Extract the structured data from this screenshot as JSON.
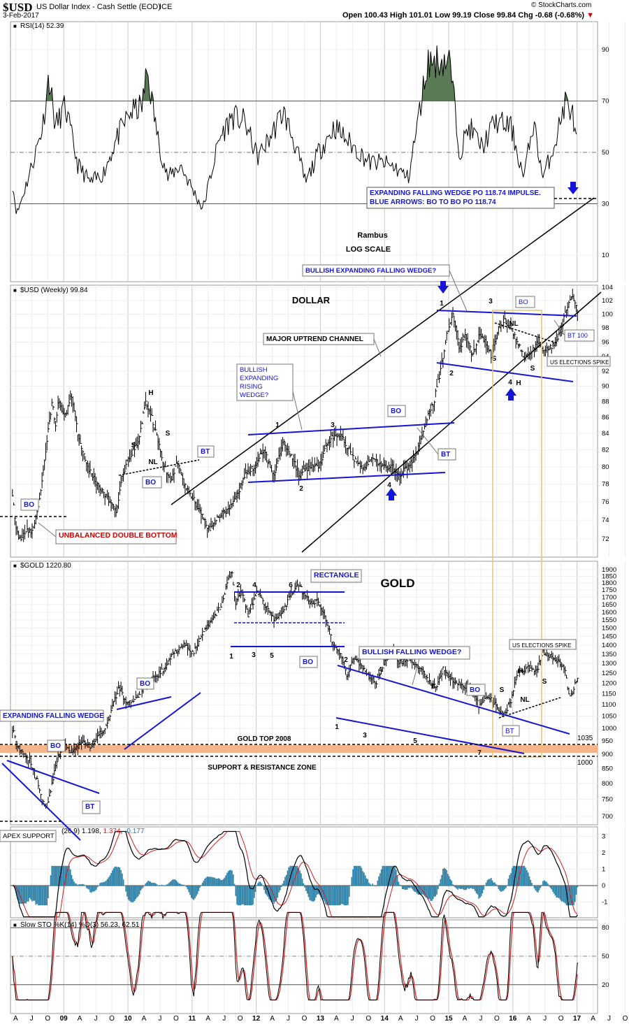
{
  "header": {
    "symbol": "$USD",
    "name": "US Dollar Index - Cash Settle (EOD)",
    "exchange": "ICE",
    "date": "3-Feb-2017",
    "quote": "Open 100.43  High 101.01  Low 99.19  Close 99.84  Chg -0.68 (-0.68%)",
    "quote_arrow": "▼",
    "credit": "© StockCharts.com"
  },
  "colors": {
    "rsi_fill": "#5a7a55",
    "blue": "#1515d8",
    "red": "#d40000",
    "zone": "#f6b48a",
    "box": "#e8c270",
    "hist": "#2a7fa6",
    "sig": "#d81e1e"
  },
  "months": [
    "A",
    "J",
    "O",
    "09",
    "A",
    "J",
    "O",
    "10",
    "A",
    "J",
    "O",
    "11",
    "A",
    "J",
    "O",
    "12",
    "A",
    "J",
    "O",
    "13",
    "A",
    "J",
    "O",
    "14",
    "A",
    "J",
    "O",
    "15",
    "A",
    "J",
    "O",
    "16",
    "A",
    "J",
    "O",
    "17",
    "A",
    "J",
    "O"
  ],
  "year_labels": [
    "09",
    "10",
    "11",
    "12",
    "13",
    "14",
    "15",
    "16",
    "17"
  ],
  "chart_data": [
    {
      "type": "line",
      "title": "RSI(14) 52.39",
      "y_ticks": [
        90,
        70,
        50,
        30,
        10
      ],
      "levels": [
        70,
        30
      ],
      "mid_level": 50,
      "x_range": [
        2008.25,
        2017.4
      ],
      "anchors": [
        [
          2008.28,
          38
        ],
        [
          2008.35,
          26
        ],
        [
          2008.55,
          42
        ],
        [
          2008.75,
          60
        ],
        [
          2008.85,
          80
        ],
        [
          2008.95,
          60
        ],
        [
          2009.1,
          68
        ],
        [
          2009.3,
          45
        ],
        [
          2009.5,
          38
        ],
        [
          2009.7,
          42
        ],
        [
          2009.9,
          55
        ],
        [
          2010.1,
          65
        ],
        [
          2010.3,
          68
        ],
        [
          2010.38,
          82
        ],
        [
          2010.55,
          55
        ],
        [
          2010.7,
          40
        ],
        [
          2010.9,
          45
        ],
        [
          2011.1,
          35
        ],
        [
          2011.25,
          28
        ],
        [
          2011.5,
          55
        ],
        [
          2011.7,
          64
        ],
        [
          2011.9,
          62
        ],
        [
          2012.1,
          48
        ],
        [
          2012.3,
          56
        ],
        [
          2012.5,
          66
        ],
        [
          2012.7,
          52
        ],
        [
          2012.85,
          38
        ],
        [
          2013.05,
          50
        ],
        [
          2013.3,
          60
        ],
        [
          2013.6,
          52
        ],
        [
          2013.85,
          46
        ],
        [
          2014.05,
          46
        ],
        [
          2014.25,
          44
        ],
        [
          2014.45,
          40
        ],
        [
          2014.6,
          62
        ],
        [
          2014.75,
          85
        ],
        [
          2014.95,
          86
        ],
        [
          2015.1,
          85
        ],
        [
          2015.25,
          50
        ],
        [
          2015.4,
          60
        ],
        [
          2015.6,
          52
        ],
        [
          2015.8,
          62
        ],
        [
          2016.05,
          60
        ],
        [
          2016.25,
          40
        ],
        [
          2016.4,
          62
        ],
        [
          2016.55,
          40
        ],
        [
          2016.75,
          55
        ],
        [
          2016.9,
          70
        ],
        [
          2017.0,
          66
        ],
        [
          2017.08,
          52
        ]
      ],
      "annotation_box": [
        "EXPANDING FALLING WEDGE PO 118.74 IMPULSE.",
        "BLUE ARROWS:  BO TO BO PO 118.74"
      ]
    },
    {
      "type": "line",
      "title": "$USD (Weekly) 99.84",
      "scale": "log",
      "y_ticks": [
        104,
        102,
        100,
        98,
        96,
        94,
        92,
        90,
        88,
        86,
        84,
        82,
        80,
        78,
        76,
        74,
        72
      ],
      "x_range": [
        2008.25,
        2017.4
      ],
      "anchors": [
        [
          2008.28,
          77
        ],
        [
          2008.33,
          73
        ],
        [
          2008.4,
          72
        ],
        [
          2008.5,
          73
        ],
        [
          2008.58,
          72.5
        ],
        [
          2008.7,
          76
        ],
        [
          2008.8,
          82
        ],
        [
          2008.9,
          88
        ],
        [
          2008.95,
          85
        ],
        [
          2009.0,
          88
        ],
        [
          2009.1,
          86
        ],
        [
          2009.2,
          89
        ],
        [
          2009.3,
          84
        ],
        [
          2009.45,
          80
        ],
        [
          2009.6,
          78
        ],
        [
          2009.8,
          76
        ],
        [
          2009.9,
          75
        ],
        [
          2010.0,
          79
        ],
        [
          2010.1,
          81
        ],
        [
          2010.25,
          83
        ],
        [
          2010.35,
          88
        ],
        [
          2010.45,
          86
        ],
        [
          2010.55,
          83
        ],
        [
          2010.65,
          80
        ],
        [
          2010.75,
          78
        ],
        [
          2010.85,
          81
        ],
        [
          2010.95,
          78
        ],
        [
          2011.05,
          77
        ],
        [
          2011.2,
          75
        ],
        [
          2011.35,
          73
        ],
        [
          2011.5,
          74.5
        ],
        [
          2011.7,
          75.5
        ],
        [
          2011.8,
          77
        ],
        [
          2011.9,
          79
        ],
        [
          2012.05,
          80
        ],
        [
          2012.2,
          82
        ],
        [
          2012.35,
          79
        ],
        [
          2012.5,
          83
        ],
        [
          2012.65,
          81
        ],
        [
          2012.75,
          79
        ],
        [
          2012.9,
          80
        ],
        [
          2013.05,
          80
        ],
        [
          2013.2,
          83
        ],
        [
          2013.35,
          84
        ],
        [
          2013.45,
          83
        ],
        [
          2013.6,
          81
        ],
        [
          2013.75,
          80
        ],
        [
          2013.9,
          81
        ],
        [
          2014.05,
          80
        ],
        [
          2014.2,
          80
        ],
        [
          2014.3,
          79
        ],
        [
          2014.45,
          80
        ],
        [
          2014.6,
          82
        ],
        [
          2014.75,
          86
        ],
        [
          2014.85,
          88
        ],
        [
          2014.95,
          92
        ],
        [
          2015.05,
          97
        ],
        [
          2015.15,
          100
        ],
        [
          2015.25,
          95
        ],
        [
          2015.35,
          97
        ],
        [
          2015.45,
          94
        ],
        [
          2015.55,
          97
        ],
        [
          2015.65,
          96
        ],
        [
          2015.75,
          94
        ],
        [
          2015.85,
          98
        ],
        [
          2015.95,
          99
        ],
        [
          2016.05,
          98
        ],
        [
          2016.15,
          96
        ],
        [
          2016.25,
          94
        ],
        [
          2016.35,
          94
        ],
        [
          2016.45,
          96
        ],
        [
          2016.55,
          95
        ],
        [
          2016.7,
          95.5
        ],
        [
          2016.8,
          97
        ],
        [
          2016.9,
          100
        ],
        [
          2017.0,
          103
        ],
        [
          2017.05,
          102
        ],
        [
          2017.1,
          99.84
        ]
      ],
      "annotations": {
        "title": "DOLLAR",
        "channel": "MAJOR UPTREND CHANNEL",
        "rising_wedge": [
          "BULLISH",
          "EXPANDING",
          "RISING",
          "WEDGE?"
        ],
        "falling_wedge": "BULLISH EXPANDING FALLING WEDGE?",
        "double_bottom": "UNBALANCED DOUBLE BOTTOM",
        "bo": "BO",
        "bt": "BT",
        "bt100": "BT 100",
        "elections": "US ELECTIONS SPIKE",
        "h": "H",
        "s": "S",
        "nl": "NL",
        "n1": "1",
        "n2": "2",
        "n3": "3",
        "n4": "4"
      }
    },
    {
      "type": "line",
      "title": "$GOLD 1220.80",
      "scale": "log",
      "y_ticks": [
        1900,
        1850,
        1800,
        1750,
        1700,
        1650,
        1600,
        1550,
        1500,
        1450,
        1400,
        1350,
        1300,
        1250,
        1200,
        1150,
        1100,
        1050,
        1000,
        950,
        900,
        850,
        800,
        750,
        700
      ],
      "x_range": [
        2008.25,
        2017.4
      ],
      "anchors": [
        [
          2008.28,
          1000
        ],
        [
          2008.35,
          930
        ],
        [
          2008.45,
          900
        ],
        [
          2008.55,
          880
        ],
        [
          2008.65,
          820
        ],
        [
          2008.75,
          740
        ],
        [
          2008.82,
          720
        ],
        [
          2008.9,
          800
        ],
        [
          2009.0,
          900
        ],
        [
          2009.1,
          940
        ],
        [
          2009.2,
          900
        ],
        [
          2009.35,
          950
        ],
        [
          2009.5,
          930
        ],
        [
          2009.65,
          980
        ],
        [
          2009.75,
          1010
        ],
        [
          2009.85,
          1110
        ],
        [
          2009.95,
          1180
        ],
        [
          2010.05,
          1100
        ],
        [
          2010.2,
          1120
        ],
        [
          2010.35,
          1200
        ],
        [
          2010.5,
          1230
        ],
        [
          2010.65,
          1270
        ],
        [
          2010.8,
          1360
        ],
        [
          2010.95,
          1400
        ],
        [
          2011.1,
          1350
        ],
        [
          2011.25,
          1480
        ],
        [
          2011.4,
          1560
        ],
        [
          2011.55,
          1650
        ],
        [
          2011.65,
          1850
        ],
        [
          2011.7,
          1900
        ],
        [
          2011.75,
          1650
        ],
        [
          2011.85,
          1750
        ],
        [
          2011.95,
          1580
        ],
        [
          2012.1,
          1740
        ],
        [
          2012.2,
          1650
        ],
        [
          2012.35,
          1560
        ],
        [
          2012.5,
          1600
        ],
        [
          2012.65,
          1750
        ],
        [
          2012.75,
          1780
        ],
        [
          2012.85,
          1700
        ],
        [
          2012.95,
          1660
        ],
        [
          2013.05,
          1670
        ],
        [
          2013.15,
          1580
        ],
        [
          2013.28,
          1400
        ],
        [
          2013.4,
          1350
        ],
        [
          2013.5,
          1230
        ],
        [
          2013.6,
          1330
        ],
        [
          2013.7,
          1300
        ],
        [
          2013.85,
          1230
        ],
        [
          2013.95,
          1200
        ],
        [
          2014.05,
          1280
        ],
        [
          2014.2,
          1380
        ],
        [
          2014.3,
          1300
        ],
        [
          2014.45,
          1330
        ],
        [
          2014.55,
          1300
        ],
        [
          2014.7,
          1250
        ],
        [
          2014.8,
          1200
        ],
        [
          2014.9,
          1180
        ],
        [
          2015.0,
          1280
        ],
        [
          2015.1,
          1220
        ],
        [
          2015.2,
          1200
        ],
        [
          2015.35,
          1180
        ],
        [
          2015.45,
          1170
        ],
        [
          2015.55,
          1100
        ],
        [
          2015.7,
          1140
        ],
        [
          2015.85,
          1080
        ],
        [
          2015.95,
          1060
        ],
        [
          2016.05,
          1120
        ],
        [
          2016.15,
          1250
        ],
        [
          2016.3,
          1280
        ],
        [
          2016.45,
          1260
        ],
        [
          2016.55,
          1360
        ],
        [
          2016.65,
          1340
        ],
        [
          2016.78,
          1310
        ],
        [
          2016.88,
          1280
        ],
        [
          2016.95,
          1150
        ],
        [
          2017.0,
          1140
        ],
        [
          2017.05,
          1200
        ],
        [
          2017.1,
          1220
        ]
      ],
      "annotations": {
        "title": "GOLD",
        "rectangle": "RECTANGLE",
        "falling_wedge": "BULLISH FALLING WEDGE?",
        "efw": "EXPANDING FALLING WEDGE",
        "top2008": "GOLD TOP 2008",
        "zone": "SUPPORT & RESISTANCE ZONE",
        "apex": "APEX SUPPORT",
        "elections": "US ELECTIONS SPIKE",
        "v1035": "1035",
        "v1000": "1000",
        "bo": "BO",
        "bt": "BT",
        "h": "H",
        "s": "S",
        "nl": "NL",
        "n1": "1",
        "n2": "2",
        "n3": "3",
        "n4": "4",
        "n5": "5",
        "n6": "6",
        "n7": "7"
      }
    },
    {
      "type": "line",
      "title": "(26,9) 1.198, 1.374, -0.177",
      "title_parts": [
        "(26,9) ",
        "1.198",
        ", ",
        "1.374",
        ", ",
        "-0.177"
      ],
      "y_ticks": [
        3,
        2,
        1,
        0,
        -1
      ],
      "x_range": [
        2008.25,
        2017.4
      ]
    },
    {
      "type": "line",
      "title": "Slow STO %K(14) %D(3) 56.23, 62.51",
      "y_ticks": [
        80,
        50,
        20
      ],
      "x_range": [
        2008.25,
        2017.4
      ]
    }
  ],
  "text": {
    "rambus": "Rambus",
    "log_scale": "LOG SCALE"
  }
}
